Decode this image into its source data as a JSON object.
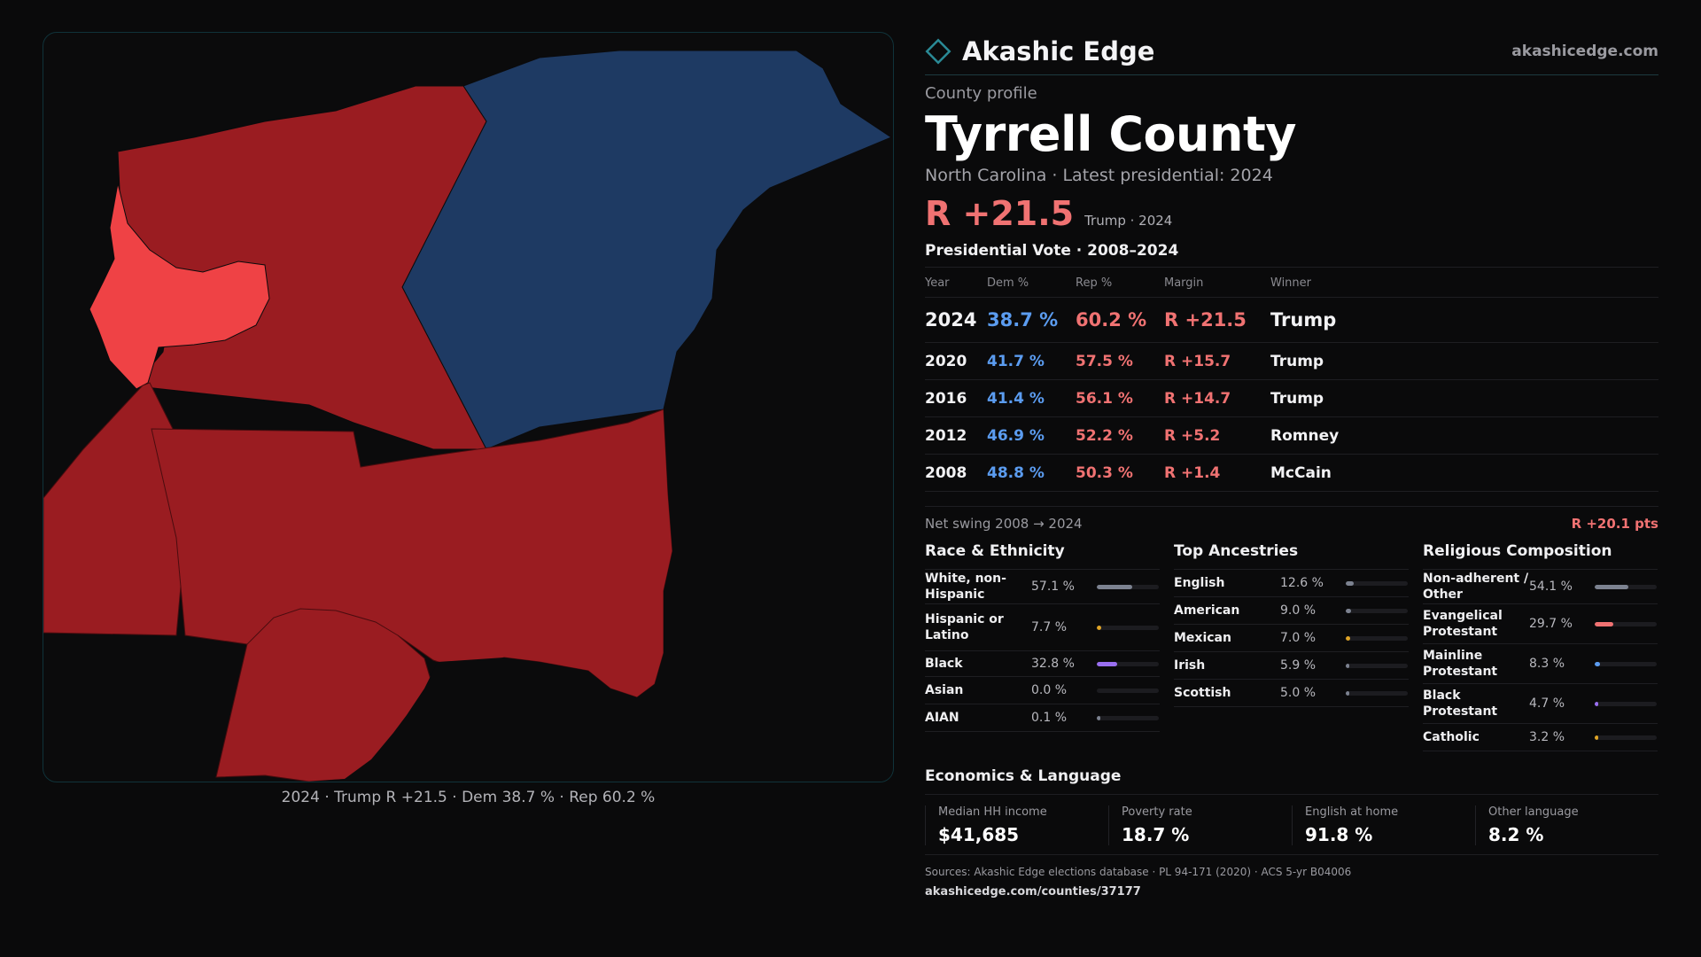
{
  "brand": {
    "name": "Akashic Edge",
    "site": "akashicedge.com",
    "accent": "#2a8a96"
  },
  "colors": {
    "rep_dark": "#9a1c21",
    "rep_light": "#ef4245",
    "dem": "#1e3a63",
    "dem_text": "#5b9cf0",
    "rep_text": "#f07272"
  },
  "map": {
    "caption": "2024 · Trump R +21.5 · Dem 38.7 % · Rep 60.2 %"
  },
  "profile": {
    "kicker": "County profile",
    "title": "Tyrrell County",
    "subtitle": "North Carolina · Latest presidential: 2024",
    "headline_margin": "R +21.5",
    "headline_note": "Trump · 2024"
  },
  "votes": {
    "title": "Presidential Vote · 2008–2024",
    "headers": [
      "Year",
      "Dem %",
      "Rep %",
      "Margin",
      "Winner"
    ],
    "rows": [
      [
        "2024",
        "38.7 %",
        "60.2 %",
        "R +21.5",
        "Trump"
      ],
      [
        "2020",
        "41.7 %",
        "57.5 %",
        "R +15.7",
        "Trump"
      ],
      [
        "2016",
        "41.4 %",
        "56.1 %",
        "R +14.7",
        "Trump"
      ],
      [
        "2012",
        "46.9 %",
        "52.2 %",
        "R +5.2",
        "Romney"
      ],
      [
        "2008",
        "48.8 %",
        "50.3 %",
        "R +1.4",
        "McCain"
      ]
    ]
  },
  "swing": {
    "label": "Net swing 2008 → 2024",
    "value": "R +20.1 pts"
  },
  "demographics": [
    {
      "title": "Race & Ethnicity",
      "rows": [
        {
          "name": "White, non-Hispanic",
          "pct": "57.1 %",
          "value": 0.571,
          "color": "#7c8290"
        },
        {
          "name": "Hispanic or Latino",
          "pct": "7.7 %",
          "value": 0.077,
          "color": "#e0a526"
        },
        {
          "name": "Black",
          "pct": "32.8 %",
          "value": 0.328,
          "color": "#9a6ff0"
        },
        {
          "name": "Asian",
          "pct": "0.0 %",
          "value": 0.0,
          "color": "#5b9cf0"
        },
        {
          "name": "AIAN",
          "pct": "0.1 %",
          "value": 0.001,
          "color": "#7c8290"
        }
      ]
    },
    {
      "title": "Top Ancestries",
      "rows": [
        {
          "name": "English",
          "pct": "12.6 %",
          "value": 0.126,
          "color": "#7c8290"
        },
        {
          "name": "American",
          "pct": "9.0 %",
          "value": 0.09,
          "color": "#7c8290"
        },
        {
          "name": "Mexican",
          "pct": "7.0 %",
          "value": 0.07,
          "color": "#e0a526"
        },
        {
          "name": "Irish",
          "pct": "5.9 %",
          "value": 0.059,
          "color": "#7c8290"
        },
        {
          "name": "Scottish",
          "pct": "5.0 %",
          "value": 0.05,
          "color": "#7c8290"
        }
      ]
    },
    {
      "title": "Religious Composition",
      "rows": [
        {
          "name": "Non-adherent / Other",
          "pct": "54.1 %",
          "value": 0.541,
          "color": "#7c8290"
        },
        {
          "name": "Evangelical Protestant",
          "pct": "29.7 %",
          "value": 0.297,
          "color": "#f07272"
        },
        {
          "name": "Mainline Protestant",
          "pct": "8.3 %",
          "value": 0.083,
          "color": "#5b9cf0"
        },
        {
          "name": "Black Protestant",
          "pct": "4.7 %",
          "value": 0.047,
          "color": "#9a6ff0"
        },
        {
          "name": "Catholic",
          "pct": "3.2 %",
          "value": 0.032,
          "color": "#e0a526"
        }
      ]
    }
  ],
  "economics": {
    "title": "Economics & Language",
    "cells": [
      {
        "label": "Median HH income",
        "value": "$41,685"
      },
      {
        "label": "Poverty rate",
        "value": "18.7 %"
      },
      {
        "label": "English at home",
        "value": "91.8 %"
      },
      {
        "label": "Other language",
        "value": "8.2 %"
      }
    ]
  },
  "footer": {
    "sources": "Sources: Akashic Edge elections database · PL 94-171 (2020) · ACS 5-yr B04006",
    "url": "akashicedge.com/counties/37177"
  }
}
